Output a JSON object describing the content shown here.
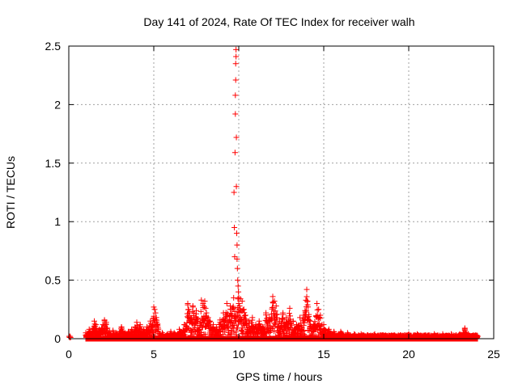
{
  "chart_data": {
    "type": "scatter",
    "title": "Day 141 of 2024, Rate Of TEC Index for receiver walh",
    "xlabel": "GPS time / hours",
    "ylabel": "ROTI / TECUs",
    "xlim": [
      0,
      25
    ],
    "ylim": [
      0,
      2.5
    ],
    "xticks": [
      0,
      5,
      10,
      15,
      20,
      25
    ],
    "xtick_labels": [
      "0",
      "5",
      "10",
      "15",
      "20",
      "25"
    ],
    "yticks": [
      0,
      0.5,
      1,
      1.5,
      2,
      2.5
    ],
    "ytick_labels": [
      "0",
      "0.5",
      "1",
      "1.5",
      "2",
      "2.5"
    ],
    "grid": true,
    "legend": "none",
    "marker": "plus",
    "color": "#ff0000",
    "series": [
      {
        "x": [
          0.02,
          0.05,
          0.08,
          0.1,
          1.0,
          1.2,
          1.5,
          1.6,
          1.8,
          2.0,
          2.1,
          2.2,
          2.4,
          2.6,
          2.8,
          3.0,
          3.1,
          3.3,
          3.5,
          3.7,
          3.9,
          4.0,
          4.2,
          4.4,
          4.6,
          4.8,
          5.0,
          5.05,
          5.1,
          5.15,
          5.2,
          5.5,
          5.8,
          6.0,
          6.2,
          6.5,
          6.8,
          7.0,
          7.05,
          7.1,
          7.2,
          7.3,
          7.5,
          7.6,
          7.8,
          7.9,
          8.0,
          8.05,
          8.1,
          8.2,
          8.3,
          8.5,
          8.7,
          8.9,
          9.1,
          9.3,
          9.5,
          9.6,
          9.7,
          9.72,
          9.74,
          9.76,
          9.78,
          9.8,
          9.8,
          9.82,
          9.82,
          9.84,
          9.84,
          9.86,
          9.86,
          9.88,
          9.9,
          9.9,
          9.92,
          9.94,
          9.96,
          9.98,
          10.0,
          10.0,
          10.05,
          10.1,
          10.2,
          10.3,
          10.4,
          10.6,
          10.8,
          11.0,
          11.2,
          11.4,
          11.6,
          11.8,
          12.0,
          12.1,
          12.2,
          12.4,
          12.6,
          12.8,
          13.0,
          13.2,
          13.4,
          13.6,
          13.8,
          13.9,
          14.0,
          14.05,
          14.2,
          14.4,
          14.6,
          14.7,
          14.8,
          15.0,
          15.3,
          15.6,
          16.0,
          16.4,
          16.8,
          17.2,
          17.6,
          18.0,
          18.5,
          19.0,
          19.5,
          20.0,
          20.5,
          21.0,
          21.5,
          22.0,
          22.5,
          23.0,
          23.3,
          23.5,
          23.8,
          24.0
        ],
        "y": [
          0.02,
          0.01,
          0.02,
          0.01,
          0.05,
          0.08,
          0.15,
          0.12,
          0.08,
          0.12,
          0.16,
          0.14,
          0.06,
          0.07,
          0.05,
          0.06,
          0.1,
          0.05,
          0.06,
          0.08,
          0.1,
          0.14,
          0.12,
          0.08,
          0.1,
          0.15,
          0.27,
          0.25,
          0.22,
          0.18,
          0.12,
          0.05,
          0.04,
          0.06,
          0.05,
          0.08,
          0.12,
          0.3,
          0.25,
          0.22,
          0.18,
          0.28,
          0.24,
          0.15,
          0.33,
          0.3,
          0.32,
          0.26,
          0.22,
          0.18,
          0.15,
          0.12,
          0.1,
          0.16,
          0.22,
          0.3,
          0.28,
          0.25,
          0.35,
          1.25,
          0.95,
          0.7,
          1.59,
          1.92,
          2.08,
          2.21,
          2.35,
          2.41,
          2.47,
          1.72,
          1.3,
          0.9,
          0.8,
          0.68,
          0.6,
          0.5,
          0.45,
          0.4,
          0.35,
          0.3,
          0.28,
          0.34,
          0.32,
          0.25,
          0.2,
          0.15,
          0.18,
          0.12,
          0.15,
          0.1,
          0.22,
          0.18,
          0.36,
          0.32,
          0.28,
          0.15,
          0.22,
          0.18,
          0.26,
          0.15,
          0.12,
          0.18,
          0.2,
          0.24,
          0.42,
          0.32,
          0.15,
          0.12,
          0.3,
          0.25,
          0.2,
          0.12,
          0.08,
          0.06,
          0.06,
          0.05,
          0.04,
          0.04,
          0.03,
          0.04,
          0.03,
          0.03,
          0.03,
          0.04,
          0.04,
          0.03,
          0.04,
          0.04,
          0.04,
          0.04,
          0.09,
          0.04,
          0.03,
          0.03
        ]
      }
    ]
  }
}
